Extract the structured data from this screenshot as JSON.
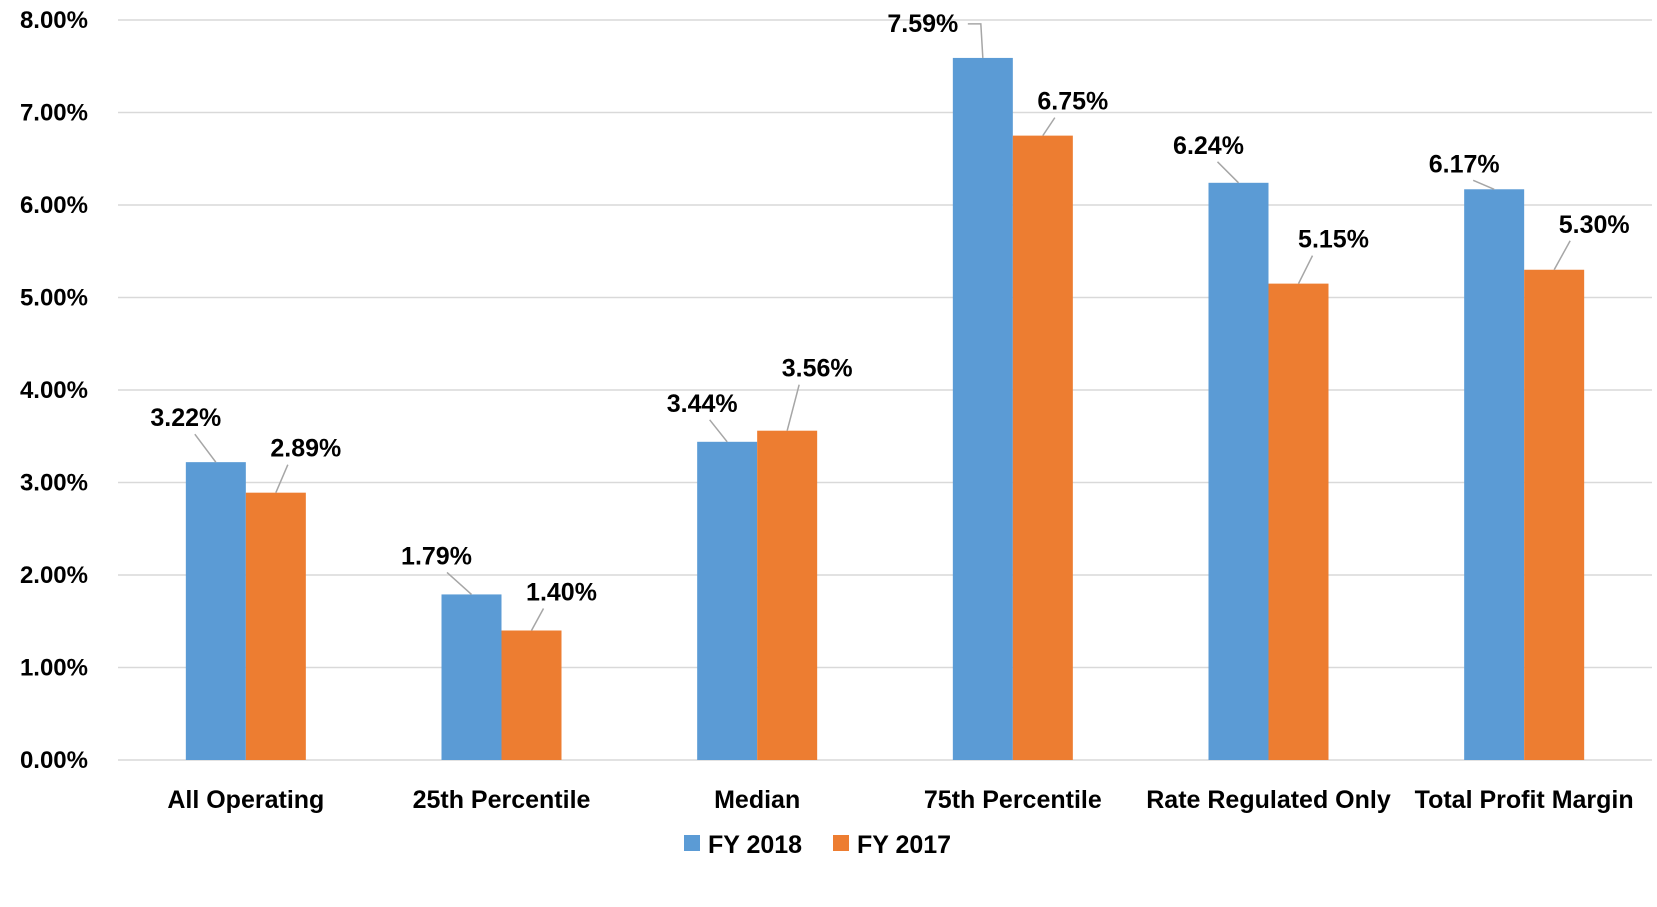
{
  "chart_data": {
    "type": "bar",
    "title": "",
    "xlabel": "",
    "ylabel": "",
    "categories": [
      "All Operating",
      "25th Percentile",
      "Median",
      "75th Percentile",
      "Rate Regulated Only",
      "Total Profit Margin"
    ],
    "series": [
      {
        "name": "FY 2018",
        "color": "#5b9bd5",
        "values": [
          3.22,
          1.79,
          3.44,
          7.59,
          6.24,
          6.17
        ],
        "labels": [
          "3.22%",
          "1.79%",
          "3.44%",
          "7.59%",
          "6.24%",
          "6.17%"
        ]
      },
      {
        "name": "FY 2017",
        "color": "#ed7d31",
        "values": [
          2.89,
          1.4,
          3.56,
          6.75,
          5.15,
          5.3
        ],
        "labels": [
          "2.89%",
          "1.40%",
          "3.56%",
          "6.75%",
          "5.15%",
          "5.30%"
        ]
      }
    ],
    "ylim": [
      0,
      8
    ],
    "yticks": [
      0,
      1,
      2,
      3,
      4,
      5,
      6,
      7,
      8
    ],
    "ytick_labels": [
      "0.00%",
      "1.00%",
      "2.00%",
      "3.00%",
      "4.00%",
      "5.00%",
      "6.00%",
      "7.00%",
      "8.00%"
    ],
    "grid": true,
    "legend_position": "bottom",
    "gridline_color": "#d9d9d9",
    "leader_line_color": "#a6a6a6"
  }
}
